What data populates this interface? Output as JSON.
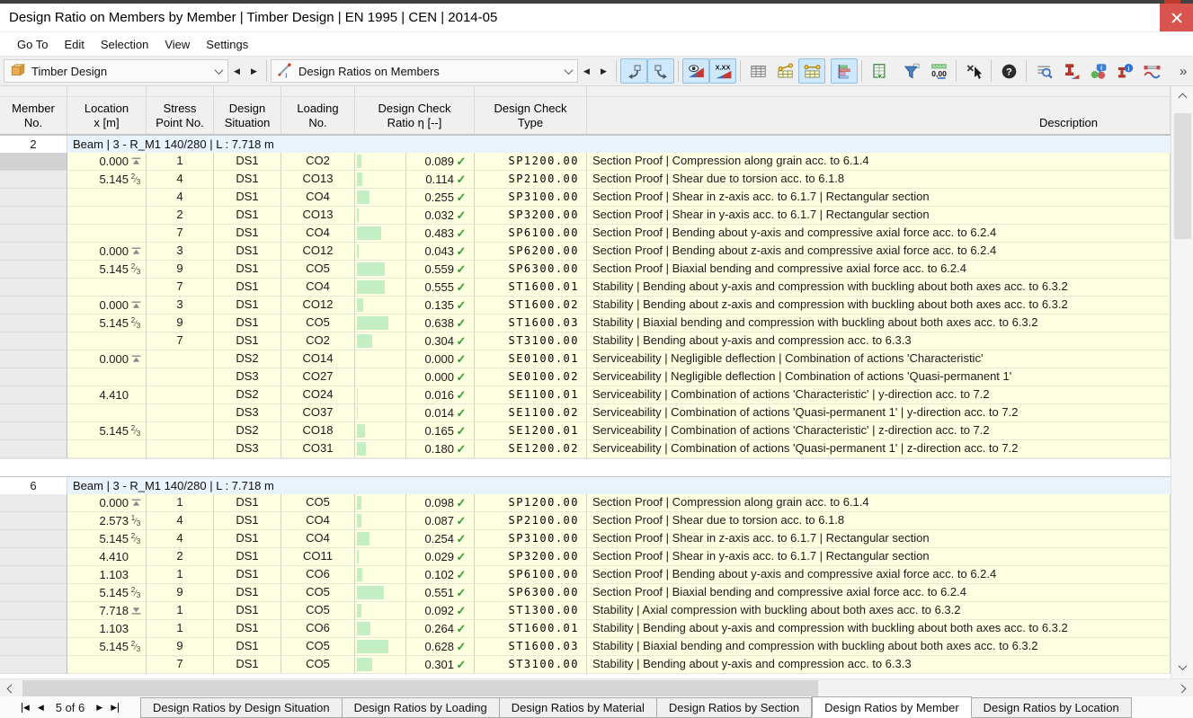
{
  "window": {
    "title": "Design Ratio on Members by Member | Timber Design | EN 1995 | CEN | 2014-05"
  },
  "menu": {
    "items": [
      "Go To",
      "Edit",
      "Selection",
      "View",
      "Settings"
    ]
  },
  "toolbar": {
    "module_selector": {
      "label": "Timber Design",
      "icon": "timber-icon"
    },
    "result_selector": {
      "label": "Design Ratios on Members",
      "icon": "design-ratio-icon"
    },
    "overflow_glyph": "»",
    "buttons": [
      {
        "icon": "nav-previous-object-icon",
        "highlighted": true
      },
      {
        "icon": "nav-next-object-icon",
        "highlighted": true
      },
      {
        "type": "separator"
      },
      {
        "icon": "show-results-eye-icon",
        "highlighted": true
      },
      {
        "icon": "show-result-values-icon",
        "highlighted": true
      },
      {
        "type": "separator"
      },
      {
        "icon": "table-grid-icon",
        "highlighted": false
      },
      {
        "icon": "table-results-by-node-icon",
        "highlighted": false
      },
      {
        "icon": "table-results-by-section-icon",
        "highlighted": true
      },
      {
        "type": "gap"
      },
      {
        "icon": "result-diagram-icon",
        "highlighted": true
      },
      {
        "type": "separator"
      },
      {
        "icon": "excel-export-icon",
        "highlighted": false
      },
      {
        "type": "gap"
      },
      {
        "icon": "filter-icon",
        "highlighted": false
      },
      {
        "icon": "decimal-places-icon",
        "highlighted": false
      },
      {
        "type": "separator"
      },
      {
        "icon": "cancel-selection-icon",
        "highlighted": false
      },
      {
        "type": "separator"
      },
      {
        "icon": "help-icon",
        "highlighted": false
      },
      {
        "type": "separator"
      },
      {
        "icon": "find-in-table-icon",
        "highlighted": false
      },
      {
        "icon": "section-design-ratio-icon",
        "highlighted": false
      },
      {
        "icon": "result-info-icon",
        "highlighted": false
      },
      {
        "icon": "section-info-icon",
        "highlighted": false
      },
      {
        "icon": "member-deformation-icon",
        "highlighted": false
      }
    ]
  },
  "table": {
    "columns": [
      {
        "l1": "Member",
        "l2": "No."
      },
      {
        "l1": "Location",
        "l2": "x [m]"
      },
      {
        "l1": "Stress",
        "l2": "Point No."
      },
      {
        "l1": "Design",
        "l2": "Situation"
      },
      {
        "l1": "Loading",
        "l2": "No."
      },
      {
        "l1": "Design Check",
        "l2": "Ratio η [--]"
      },
      {
        "l1": "Design Check",
        "l2": "Type"
      },
      {
        "l1": "",
        "l2": "Description"
      }
    ],
    "check_glyph": "✓",
    "groups": [
      {
        "member": "2",
        "label": "Beam | 3 - R_M1 140/280 | L : 7.718 m",
        "rows": [
          {
            "x": "0.000",
            "mark": "start",
            "frac": "",
            "sp": "1",
            "ds": "DS1",
            "co": "CO2",
            "ratio": 0.089,
            "ratio_text": "0.089",
            "type": "SP1200.00",
            "desc": "Section Proof | Compression along grain acc. to 6.1.4",
            "current": true
          },
          {
            "x": "5.145",
            "mark": "",
            "frac": "2/3",
            "sp": "4",
            "ds": "DS1",
            "co": "CO13",
            "ratio": 0.114,
            "ratio_text": "0.114",
            "type": "SP2100.00",
            "desc": "Section Proof | Shear due to torsion acc. to 6.1.8"
          },
          {
            "x": "",
            "mark": "",
            "frac": "",
            "sp": "4",
            "ds": "DS1",
            "co": "CO4",
            "ratio": 0.255,
            "ratio_text": "0.255",
            "type": "SP3100.00",
            "desc": "Section Proof | Shear in z-axis acc. to 6.1.7 | Rectangular section"
          },
          {
            "x": "",
            "mark": "",
            "frac": "",
            "sp": "2",
            "ds": "DS1",
            "co": "CO13",
            "ratio": 0.032,
            "ratio_text": "0.032",
            "type": "SP3200.00",
            "desc": "Section Proof | Shear in y-axis acc. to 6.1.7 | Rectangular section"
          },
          {
            "x": "",
            "mark": "",
            "frac": "",
            "sp": "7",
            "ds": "DS1",
            "co": "CO4",
            "ratio": 0.483,
            "ratio_text": "0.483",
            "type": "SP6100.00",
            "desc": "Section Proof | Bending about y-axis and compressive axial force acc. to 6.2.4"
          },
          {
            "x": "0.000",
            "mark": "start",
            "frac": "",
            "sp": "3",
            "ds": "DS1",
            "co": "CO12",
            "ratio": 0.043,
            "ratio_text": "0.043",
            "type": "SP6200.00",
            "desc": "Section Proof | Bending about z-axis and compressive axial force acc. to 6.2.4"
          },
          {
            "x": "5.145",
            "mark": "",
            "frac": "2/3",
            "sp": "9",
            "ds": "DS1",
            "co": "CO5",
            "ratio": 0.559,
            "ratio_text": "0.559",
            "type": "SP6300.00",
            "desc": "Section Proof | Biaxial bending and compressive axial force acc. to 6.2.4"
          },
          {
            "x": "",
            "mark": "",
            "frac": "",
            "sp": "7",
            "ds": "DS1",
            "co": "CO4",
            "ratio": 0.555,
            "ratio_text": "0.555",
            "type": "ST1600.01",
            "desc": "Stability | Bending about y-axis and compression with buckling about both axes acc. to 6.3.2"
          },
          {
            "x": "0.000",
            "mark": "start",
            "frac": "",
            "sp": "3",
            "ds": "DS1",
            "co": "CO12",
            "ratio": 0.135,
            "ratio_text": "0.135",
            "type": "ST1600.02",
            "desc": "Stability | Bending about z-axis and compression with buckling about both axes acc. to 6.3.2"
          },
          {
            "x": "5.145",
            "mark": "",
            "frac": "2/3",
            "sp": "9",
            "ds": "DS1",
            "co": "CO5",
            "ratio": 0.638,
            "ratio_text": "0.638",
            "type": "ST1600.03",
            "desc": "Stability | Biaxial bending and compression with buckling about both axes acc. to 6.3.2"
          },
          {
            "x": "",
            "mark": "",
            "frac": "",
            "sp": "7",
            "ds": "DS1",
            "co": "CO2",
            "ratio": 0.304,
            "ratio_text": "0.304",
            "type": "ST3100.00",
            "desc": "Stability | Bending about y-axis and compression acc. to 6.3.3"
          },
          {
            "x": "0.000",
            "mark": "start",
            "frac": "",
            "sp": "",
            "ds": "DS2",
            "co": "CO14",
            "ratio": 0.0,
            "ratio_text": "0.000",
            "type": "SE0100.01",
            "desc": "Serviceability | Negligible deflection | Combination of actions 'Characteristic'"
          },
          {
            "x": "",
            "mark": "",
            "frac": "",
            "sp": "",
            "ds": "DS3",
            "co": "CO27",
            "ratio": 0.0,
            "ratio_text": "0.000",
            "type": "SE0100.02",
            "desc": "Serviceability | Negligible deflection | Combination of actions 'Quasi-permanent 1'"
          },
          {
            "x": "4.410",
            "mark": "",
            "frac": "",
            "sp": "",
            "ds": "DS2",
            "co": "CO24",
            "ratio": 0.016,
            "ratio_text": "0.016",
            "type": "SE1100.01",
            "desc": "Serviceability | Combination of actions 'Characteristic' | y-direction acc. to 7.2"
          },
          {
            "x": "",
            "mark": "",
            "frac": "",
            "sp": "",
            "ds": "DS3",
            "co": "CO37",
            "ratio": 0.014,
            "ratio_text": "0.014",
            "type": "SE1100.02",
            "desc": "Serviceability | Combination of actions 'Quasi-permanent 1' | y-direction acc. to 7.2"
          },
          {
            "x": "5.145",
            "mark": "",
            "frac": "2/3",
            "sp": "",
            "ds": "DS2",
            "co": "CO18",
            "ratio": 0.165,
            "ratio_text": "0.165",
            "type": "SE1200.01",
            "desc": "Serviceability | Combination of actions 'Characteristic' | z-direction acc. to 7.2"
          },
          {
            "x": "",
            "mark": "",
            "frac": "",
            "sp": "",
            "ds": "DS3",
            "co": "CO31",
            "ratio": 0.18,
            "ratio_text": "0.180",
            "type": "SE1200.02",
            "desc": "Serviceability | Combination of actions 'Quasi-permanent 1' | z-direction acc. to 7.2"
          }
        ]
      },
      {
        "member": "6",
        "label": "Beam | 3 - R_M1 140/280 | L : 7.718 m",
        "rows": [
          {
            "x": "0.000",
            "mark": "start",
            "frac": "",
            "sp": "1",
            "ds": "DS1",
            "co": "CO5",
            "ratio": 0.098,
            "ratio_text": "0.098",
            "type": "SP1200.00",
            "desc": "Section Proof | Compression along grain acc. to 6.1.4"
          },
          {
            "x": "2.573",
            "mark": "",
            "frac": "1/3",
            "sp": "4",
            "ds": "DS1",
            "co": "CO4",
            "ratio": 0.087,
            "ratio_text": "0.087",
            "type": "SP2100.00",
            "desc": "Section Proof | Shear due to torsion acc. to 6.1.8"
          },
          {
            "x": "5.145",
            "mark": "",
            "frac": "2/3",
            "sp": "4",
            "ds": "DS1",
            "co": "CO4",
            "ratio": 0.254,
            "ratio_text": "0.254",
            "type": "SP3100.00",
            "desc": "Section Proof | Shear in z-axis acc. to 6.1.7 | Rectangular section"
          },
          {
            "x": "4.410",
            "mark": "",
            "frac": "",
            "sp": "2",
            "ds": "DS1",
            "co": "CO11",
            "ratio": 0.029,
            "ratio_text": "0.029",
            "type": "SP3200.00",
            "desc": "Section Proof | Shear in y-axis acc. to 6.1.7 | Rectangular section"
          },
          {
            "x": "1.103",
            "mark": "",
            "frac": "",
            "sp": "1",
            "ds": "DS1",
            "co": "CO6",
            "ratio": 0.102,
            "ratio_text": "0.102",
            "type": "SP6100.00",
            "desc": "Section Proof | Bending about y-axis and compressive axial force acc. to 6.2.4"
          },
          {
            "x": "5.145",
            "mark": "",
            "frac": "2/3",
            "sp": "9",
            "ds": "DS1",
            "co": "CO5",
            "ratio": 0.551,
            "ratio_text": "0.551",
            "type": "SP6300.00",
            "desc": "Section Proof | Biaxial bending and compressive axial force acc. to 6.2.4"
          },
          {
            "x": "7.718",
            "mark": "end",
            "frac": "",
            "sp": "1",
            "ds": "DS1",
            "co": "CO5",
            "ratio": 0.092,
            "ratio_text": "0.092",
            "type": "ST1300.00",
            "desc": "Stability | Axial compression with buckling about both axes acc. to 6.3.2"
          },
          {
            "x": "1.103",
            "mark": "",
            "frac": "",
            "sp": "1",
            "ds": "DS1",
            "co": "CO6",
            "ratio": 0.264,
            "ratio_text": "0.264",
            "type": "ST1600.01",
            "desc": "Stability | Bending about y-axis and compression with buckling about both axes acc. to 6.3.2"
          },
          {
            "x": "5.145",
            "mark": "",
            "frac": "2/3",
            "sp": "9",
            "ds": "DS1",
            "co": "CO5",
            "ratio": 0.628,
            "ratio_text": "0.628",
            "type": "ST1600.03",
            "desc": "Stability | Biaxial bending and compression with buckling about both axes acc. to 6.3.2"
          },
          {
            "x": "",
            "mark": "",
            "frac": "",
            "sp": "7",
            "ds": "DS1",
            "co": "CO5",
            "ratio": 0.301,
            "ratio_text": "0.301",
            "type": "ST3100.00",
            "desc": "Stability | Bending about y-axis and compression acc. to 6.3.3"
          }
        ]
      }
    ]
  },
  "footer": {
    "pager_label": "5 of 6",
    "tabs": [
      {
        "label": "Design Ratios by Design Situation",
        "active": false
      },
      {
        "label": "Design Ratios by Loading",
        "active": false
      },
      {
        "label": "Design Ratios by Material",
        "active": false
      },
      {
        "label": "Design Ratios by Section",
        "active": false
      },
      {
        "label": "Design Ratios by Member",
        "active": true
      },
      {
        "label": "Design Ratios by Location",
        "active": false
      }
    ]
  }
}
